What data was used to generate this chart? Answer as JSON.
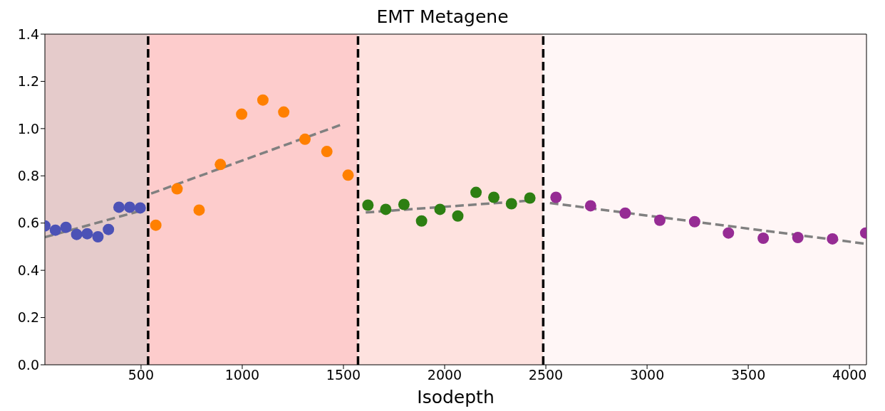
{
  "chart_data": {
    "type": "scatter",
    "title": "EMT Metagene",
    "xlabel": "Isodepth",
    "xlim": [
      25,
      4084
    ],
    "xticks": [
      500,
      1000,
      1500,
      2000,
      2500,
      3000,
      3500,
      4000
    ],
    "ylim": [
      0,
      1.4
    ],
    "yticks": [
      {
        "value": 0,
        "label": "0.0"
      },
      {
        "value": 0.2,
        "label": "0.2"
      },
      {
        "value": 0.4,
        "label": "0.4"
      },
      {
        "value": 0.6,
        "label": "0.6"
      },
      {
        "value": 0.8,
        "label": "0.8"
      },
      {
        "value": 1.0,
        "label": "1.0"
      },
      {
        "value": 1.2,
        "label": "1.2"
      },
      {
        "value": 1.4,
        "label": "1.4"
      }
    ],
    "marker": "circle",
    "series": [
      {
        "color": "#4c52b6",
        "x": [
          25,
          77,
          129,
          182,
          234,
          287,
          339,
          391,
          444,
          496
        ],
        "values": [
          0.588,
          0.57,
          0.582,
          0.552,
          0.555,
          0.542,
          0.573,
          0.667,
          0.667,
          0.664
        ]
      },
      {
        "color": "#ff8000",
        "x": [
          573,
          678,
          787,
          892,
          997,
          1102,
          1205,
          1310,
          1418,
          1523
        ],
        "values": [
          0.591,
          0.745,
          0.655,
          0.848,
          1.061,
          1.121,
          1.07,
          0.955,
          0.903,
          0.803
        ]
      },
      {
        "color": "#2d7f12",
        "x": [
          1621,
          1709,
          1799,
          1886,
          1977,
          2065,
          2155,
          2243,
          2330,
          2421
        ],
        "values": [
          0.676,
          0.658,
          0.679,
          0.609,
          0.658,
          0.63,
          0.73,
          0.709,
          0.682,
          0.706
        ]
      },
      {
        "color": "#962c94",
        "x": [
          2550,
          2721,
          2892,
          3063,
          3235,
          3402,
          3574,
          3745,
          3916,
          4080
        ],
        "values": [
          0.709,
          0.673,
          0.642,
          0.612,
          0.606,
          0.558,
          0.536,
          0.539,
          0.533,
          0.558
        ]
      },
      {
        "type": "line",
        "color": "#808080",
        "line_style": "dashed",
        "marker": "none",
        "x": [
          25,
          510
        ],
        "values": [
          0.54,
          0.655
        ]
      },
      {
        "type": "line",
        "color": "#808080",
        "line_style": "dashed",
        "marker": "none",
        "x": [
          550,
          1500
        ],
        "values": [
          0.725,
          1.02
        ]
      },
      {
        "type": "line",
        "color": "#808080",
        "line_style": "dashed",
        "marker": "none",
        "x": [
          1610,
          2420
        ],
        "values": [
          0.645,
          0.695
        ]
      },
      {
        "type": "line",
        "color": "#808080",
        "line_style": "dashed",
        "marker": "none",
        "x": [
          2520,
          4084
        ],
        "values": [
          0.685,
          0.512
        ]
      }
    ],
    "ref_lines": [
      {
        "axis": "x",
        "value": 535,
        "color": "#000000",
        "line_style": "dashed"
      },
      {
        "axis": "x",
        "value": 1572,
        "color": "#000000",
        "line_style": "dashed"
      },
      {
        "axis": "x",
        "value": 2487,
        "color": "#000000",
        "line_style": "dashed"
      }
    ],
    "bands": [
      {
        "axis": "x",
        "from": 25,
        "to": 535,
        "color": "#e5cbcb"
      },
      {
        "axis": "x",
        "from": 535,
        "to": 1572,
        "color": "#fdcccc"
      },
      {
        "axis": "x",
        "from": 1572,
        "to": 2487,
        "color": "#fee2df"
      },
      {
        "axis": "x",
        "from": 2487,
        "to": 4084,
        "color": "#fff6f6"
      }
    ]
  }
}
